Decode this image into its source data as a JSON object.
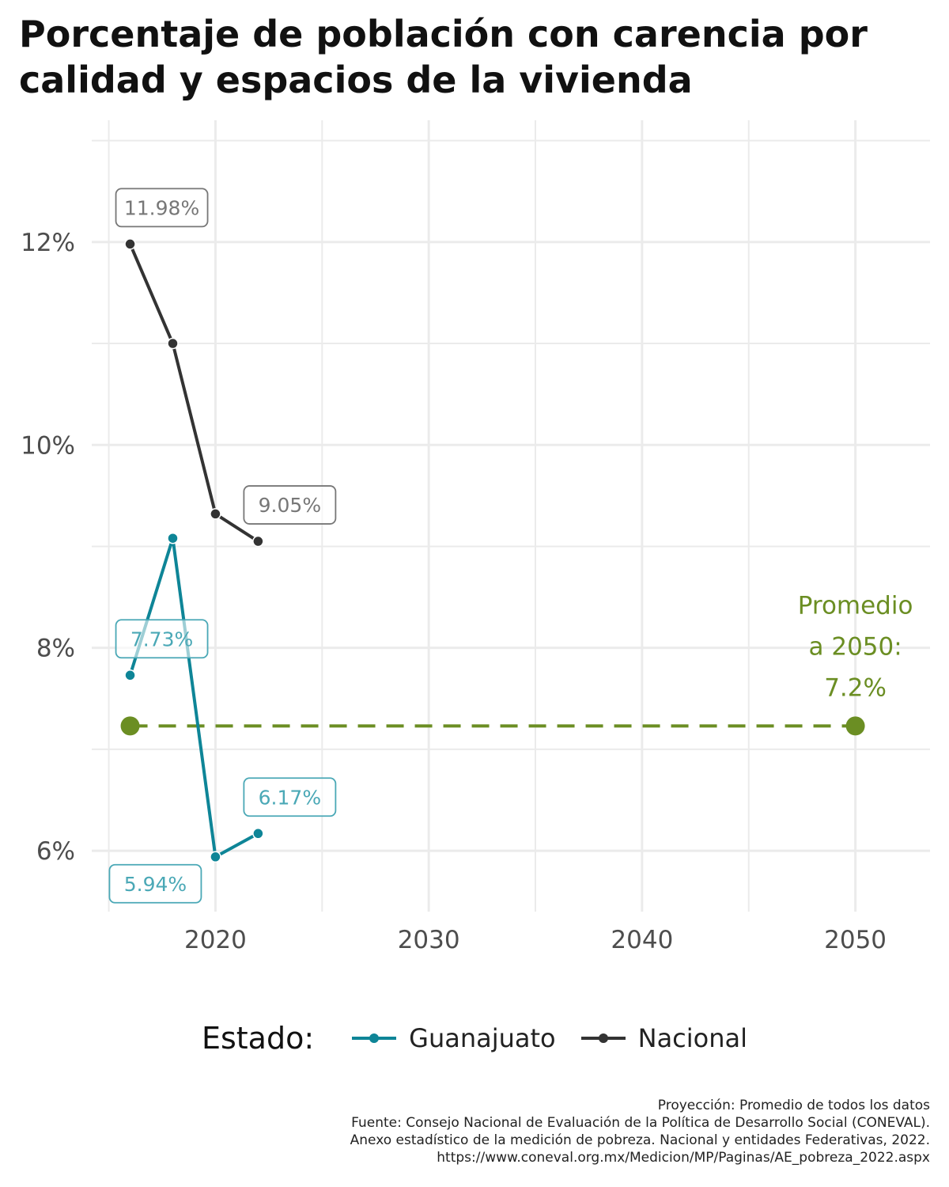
{
  "chart_data": {
    "type": "line",
    "title": "Porcentaje de población con carencia por calidad y espacios de la vivienda",
    "xlabel": "",
    "ylabel": "",
    "x_ticks": [
      "2020",
      "2030",
      "2040",
      "2050"
    ],
    "y_ticks": [
      "6%",
      "8%",
      "10%",
      "12%"
    ],
    "xlim": [
      2014.2,
      2053.5
    ],
    "ylim": [
      5.4,
      13.2
    ],
    "grid": true,
    "legend_position": "bottom",
    "legend_title": "Estado:",
    "series": [
      {
        "name": "Guanajuato",
        "color": "#0e8597",
        "label_color": "#4aa8b6",
        "points": [
          {
            "x": 2016,
            "y": 7.73,
            "label": "7.73%"
          },
          {
            "x": 2018,
            "y": 9.08
          },
          {
            "x": 2020,
            "y": 5.94,
            "label": "5.94%"
          },
          {
            "x": 2022,
            "y": 6.17,
            "label": "6.17%"
          }
        ]
      },
      {
        "name": "Nacional",
        "color": "#333333",
        "label_color": "#777777",
        "points": [
          {
            "x": 2016,
            "y": 11.98,
            "label": "11.98%"
          },
          {
            "x": 2018,
            "y": 11.0
          },
          {
            "x": 2020,
            "y": 9.32
          },
          {
            "x": 2022,
            "y": 9.05,
            "label": "9.05%"
          }
        ]
      }
    ],
    "projection": {
      "color": "#6b8e23",
      "x_start": 2016,
      "x_end": 2050,
      "y": 7.23,
      "annotation": [
        "Promedio",
        "a 2050:",
        "7.2%"
      ]
    },
    "caption": [
      "Proyección: Promedio de todos los datos",
      "Fuente: Consejo Nacional de Evaluación de la Política de Desarrollo Social (CONEVAL).",
      "Anexo estadístico de la medición de pobreza. Nacional y entidades Federativas, 2022.",
      "https://www.coneval.org.mx/Medicion/MP/Paginas/AE_pobreza_2022.aspx"
    ]
  }
}
